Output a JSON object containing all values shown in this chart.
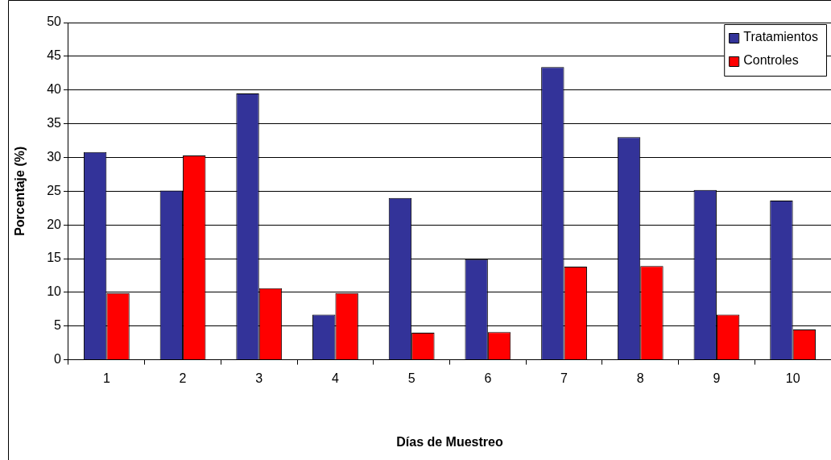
{
  "chart_data": {
    "type": "bar",
    "xlabel": "Días de Muestreo",
    "ylabel": "Porcentaje (%)",
    "categories": [
      "1",
      "2",
      "3",
      "4",
      "5",
      "6",
      "7",
      "8",
      "9",
      "10"
    ],
    "series": [
      {
        "name": "Tratamientos",
        "color": "#333399",
        "values": [
          30.8,
          25.1,
          39.5,
          6.7,
          24.0,
          14.9,
          43.4,
          33.0,
          25.2,
          23.6
        ]
      },
      {
        "name": "Controles",
        "color": "#ff0000",
        "values": [
          9.9,
          30.3,
          10.6,
          9.9,
          4.0,
          4.1,
          13.8,
          13.9,
          6.7,
          4.5
        ]
      }
    ],
    "ylim": [
      0,
      50
    ],
    "yticks": [
      0,
      5,
      10,
      15,
      20,
      25,
      30,
      35,
      40,
      45,
      50
    ],
    "grid": "y",
    "legend": "top right"
  }
}
